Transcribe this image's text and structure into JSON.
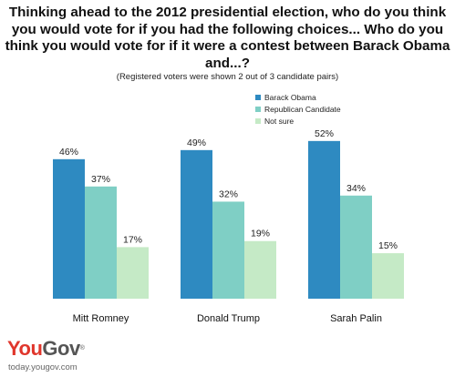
{
  "title": "Thinking ahead to the 2012 presidential election, who do you think you would vote for if you had the following choices... Who do you think you would vote for if it were a contest between Barack Obama and...?",
  "subtitle": "(Registered voters were shown 2 out of 3 candidate pairs)",
  "colors": {
    "obama": "#2e8ac1",
    "republican": "#7fcfc5",
    "not_sure": "#c5eac6"
  },
  "chart_data": {
    "type": "bar",
    "categories": [
      "Mitt Romney",
      "Donald Trump",
      "Sarah Palin"
    ],
    "series": [
      {
        "name": "Barack Obama",
        "values": [
          46,
          49,
          52
        ],
        "labels": [
          "46%",
          "49%",
          "52%"
        ]
      },
      {
        "name": "Republican Candidate",
        "values": [
          37,
          32,
          34
        ],
        "labels": [
          "37%",
          "32%",
          "34%"
        ]
      },
      {
        "name": "Not sure",
        "values": [
          17,
          19,
          15
        ],
        "labels": [
          "17%",
          "19%",
          "15%"
        ]
      }
    ],
    "ylim": [
      0,
      60
    ],
    "grid": false,
    "legend_position": "top-right"
  },
  "logo": {
    "you": "YouGov",
    "you_part": "You",
    "gov_part": "Gov",
    "reg": "®"
  },
  "site": "today.yougov.com"
}
